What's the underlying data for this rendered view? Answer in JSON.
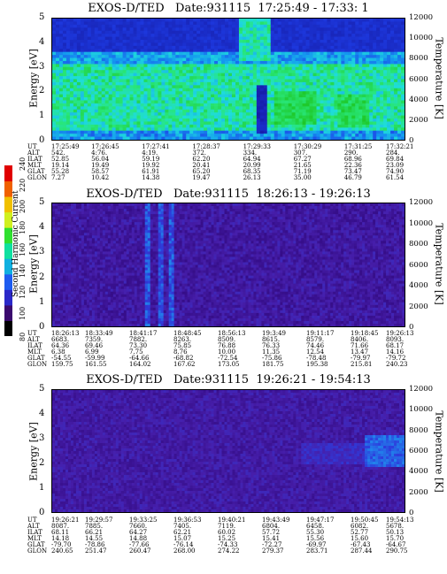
{
  "colorbar": {
    "title": "Second Harmonic Current",
    "ticks": [
      "80",
      "100",
      "120",
      "140",
      "160",
      "180",
      "200",
      "220",
      "240"
    ],
    "colors": [
      "#000000",
      "#3a0a6e",
      "#2a28c8",
      "#1e5cf0",
      "#10b0e0",
      "#10e0a0",
      "#30e030",
      "#d0f020",
      "#f0c000",
      "#f06000",
      "#e00000"
    ]
  },
  "chart_data": [
    {
      "type": "heatmap",
      "title": "EXOS-D/TED   Date:931115  17:25:49 - 17:33: 1",
      "ylabel": "Energy [eV]",
      "ylabel_right": "Temperature [K]",
      "ylim": [
        0,
        5
      ],
      "ylim_right": [
        0,
        12000
      ],
      "yticks": [
        "0",
        "1",
        "2",
        "3",
        "4",
        "5"
      ],
      "yticks_right": [
        "0",
        "2000",
        "4000",
        "6000",
        "8000",
        "10000",
        "12000"
      ],
      "orbit_labels": [
        "UT",
        "ALT",
        "ILAT",
        "MLT",
        "GLAT",
        "GLON"
      ],
      "orbit_columns": [
        [
          "17:25:49",
          "542.",
          "52.85",
          "19.14",
          "55.28",
          "7.27"
        ],
        [
          "17:26:45",
          "4:76.",
          "56.04",
          "19.49",
          "58.57",
          "10.42"
        ],
        [
          "17:27:41",
          "4:19.",
          "59.19",
          "19.92",
          "61.91",
          "14.38"
        ],
        [
          "17:28:37",
          "372.",
          "62.20",
          "20.41",
          "65.20",
          "19.47"
        ],
        [
          "17:29:33",
          "334.",
          "64.94",
          "20.99",
          "68.35",
          "26.13"
        ],
        [
          "17:30:29",
          "307.",
          "67.27",
          "21.65",
          "71.19",
          "35.00"
        ],
        [
          "17:31:25",
          "290.",
          "68.96",
          "22.36",
          "73.47",
          "46.79"
        ],
        [
          "17:32:21",
          "284.",
          "69.84",
          "23.09",
          "74.90",
          "61.54"
        ]
      ]
    },
    {
      "type": "heatmap",
      "title": "EXOS-D/TED   Date:931115  18:26:13 - 19:26:13",
      "ylabel": "Energy [eV]",
      "ylabel_right": "Temperature [K]",
      "ylim": [
        0,
        5
      ],
      "ylim_right": [
        0,
        12000
      ],
      "yticks": [
        "0",
        "1",
        "2",
        "3",
        "4",
        "5"
      ],
      "yticks_right": [
        "0",
        "2000",
        "4000",
        "6000",
        "8000",
        "10000",
        "12000"
      ],
      "orbit_labels": [
        "UT",
        "ALT",
        "ILAT",
        "MLT",
        "GLAT",
        "GLON"
      ],
      "orbit_columns": [
        [
          "18:26:13",
          "6683.",
          "64.36",
          "6.38",
          "-54.55",
          "159.75"
        ],
        [
          "18:33:49",
          "7359.",
          "69.46",
          "6.99",
          "-59.99",
          "161.55"
        ],
        [
          "18:41:17",
          "7882.",
          "73.30",
          "7.75",
          "-64.66",
          "164.02"
        ],
        [
          "18:48:45",
          "8263.",
          "75.85",
          "8.76",
          "-68.82",
          "167.62"
        ],
        [
          "18:56:13",
          "8509.",
          "76.88",
          "10.00",
          "-72.54",
          "173.05"
        ],
        [
          "19:3:49",
          "8615.",
          "76.33",
          "11.35",
          "-75.86",
          "181.75"
        ],
        [
          "19:11:17",
          "8579.",
          "74.46",
          "12.54",
          "-78.48",
          "195.38"
        ],
        [
          "19:18:45",
          "8406.",
          "71.66",
          "13.47",
          "-79.97",
          "215.81"
        ],
        [
          "19:26:13",
          "8093.",
          "68.17",
          "14.16",
          "-79.72",
          "240.23"
        ]
      ]
    },
    {
      "type": "heatmap",
      "title": "EXOS-D/TED   Date:931115  19:26:21 - 19:54:13",
      "ylabel": "Energy [eV]",
      "ylabel_right": "Temperature [K]",
      "ylim": [
        0,
        5
      ],
      "ylim_right": [
        0,
        12000
      ],
      "yticks": [
        "0",
        "1",
        "2",
        "3",
        "4",
        "5"
      ],
      "yticks_right": [
        "0",
        "2000",
        "4000",
        "6000",
        "8000",
        "10000",
        "12000"
      ],
      "orbit_labels": [
        "UT",
        "ALT",
        "ILAT",
        "MLT",
        "GLAT",
        "GLON"
      ],
      "orbit_columns": [
        [
          "19:26:21",
          "8087.",
          "68.11",
          "14.18",
          "-79.70",
          "240.65"
        ],
        [
          "19:29:57",
          "7885.",
          "66.21",
          "14.55",
          "-78.86",
          "251.47"
        ],
        [
          "19:33:25",
          "7660.",
          "64.27",
          "14.88",
          "-77.66",
          "260.47"
        ],
        [
          "19:36:53",
          "7405.",
          "62.21",
          "15.07",
          "-76.14",
          "268.00"
        ],
        [
          "19:40:21",
          "7119.",
          "60.02",
          "15.25",
          "-74.33",
          "274.22"
        ],
        [
          "19:43:49",
          "6804.",
          "57.72",
          "15.41",
          "-72.27",
          "279.37"
        ],
        [
          "19:47:17",
          "6458.",
          "55.30",
          "15.56",
          "-69.97",
          "283.71"
        ],
        [
          "19:50:45",
          "6082.",
          "52.77",
          "15.60",
          "-67.43",
          "287.44"
        ],
        [
          "19:54:13",
          "5678.",
          "50.13",
          "15.70",
          "-64.67",
          "290.75"
        ]
      ]
    }
  ]
}
